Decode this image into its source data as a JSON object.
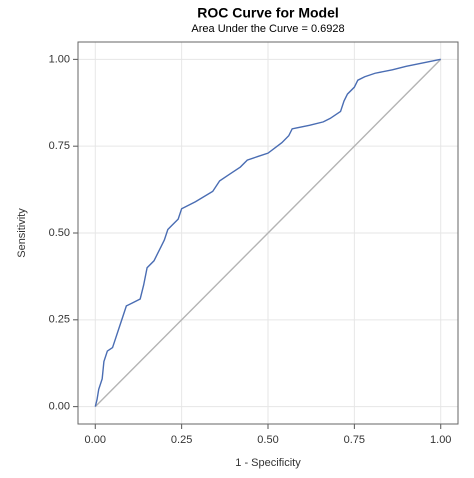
{
  "chart_data": {
    "type": "line",
    "title": "ROC Curve for Model",
    "subtitle": "Area Under the Curve = 0.6928",
    "xlabel": "1 - Specificity",
    "ylabel": "Sensitivity",
    "xlim": [
      -0.05,
      1.05
    ],
    "ylim": [
      -0.05,
      1.05
    ],
    "xticks": [
      {
        "value": 0,
        "label": "0.00"
      },
      {
        "value": 0.25,
        "label": "0.25"
      },
      {
        "value": 0.5,
        "label": "0.50"
      },
      {
        "value": 0.75,
        "label": "0.75"
      },
      {
        "value": 1,
        "label": "1.00"
      }
    ],
    "yticks": [
      {
        "value": 0,
        "label": "0.00"
      },
      {
        "value": 0.25,
        "label": "0.25"
      },
      {
        "value": 0.5,
        "label": "0.50"
      },
      {
        "value": 0.75,
        "label": "0.75"
      },
      {
        "value": 1,
        "label": "1.00"
      }
    ],
    "grid": true,
    "series": [
      {
        "color": "#b4b4b4",
        "x": [
          0,
          1
        ],
        "values": [
          0,
          1
        ]
      },
      {
        "color": "#4a6db3",
        "x": [
          0,
          0.005,
          0.01,
          0.02,
          0.025,
          0.035,
          0.05,
          0.06,
          0.07,
          0.08,
          0.09,
          0.11,
          0.13,
          0.14,
          0.15,
          0.17,
          0.19,
          0.2,
          0.21,
          0.22,
          0.24,
          0.25,
          0.29,
          0.34,
          0.36,
          0.39,
          0.42,
          0.44,
          0.47,
          0.5,
          0.54,
          0.56,
          0.57,
          0.62,
          0.66,
          0.68,
          0.71,
          0.72,
          0.73,
          0.75,
          0.76,
          0.78,
          0.81,
          0.86,
          0.9,
          0.95,
          1
        ],
        "values": [
          0,
          0.02,
          0.05,
          0.08,
          0.13,
          0.16,
          0.17,
          0.2,
          0.23,
          0.26,
          0.29,
          0.3,
          0.31,
          0.35,
          0.4,
          0.42,
          0.46,
          0.48,
          0.51,
          0.52,
          0.54,
          0.57,
          0.59,
          0.62,
          0.65,
          0.67,
          0.69,
          0.71,
          0.72,
          0.73,
          0.76,
          0.78,
          0.8,
          0.81,
          0.82,
          0.83,
          0.85,
          0.88,
          0.9,
          0.92,
          0.94,
          0.95,
          0.96,
          0.97,
          0.98,
          0.99,
          1
        ]
      }
    ]
  }
}
